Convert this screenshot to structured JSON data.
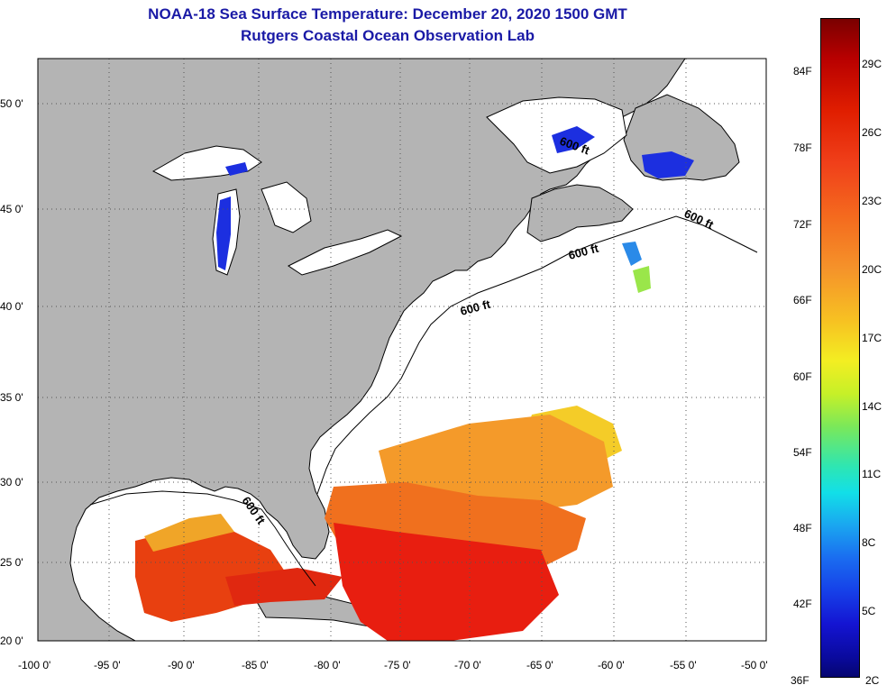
{
  "title_line1": "NOAA-18 Sea Surface Temperature:  December 20, 2020 1500 GMT",
  "title_line2": "Rutgers Coastal Ocean Observation Lab",
  "lat_labels": [
    "50 0'",
    "45 0'",
    "40 0'",
    "35 0'",
    "30 0'",
    "25 0'",
    "20 0'"
  ],
  "lon_labels": [
    "-100 0'",
    "-95 0'",
    "-90 0'",
    "-85 0'",
    "-80 0'",
    "-75 0'",
    "-70 0'",
    "-65 0'",
    "-60 0'",
    "-55 0'",
    "-50 0'"
  ],
  "contour_labels": [
    "600 ft",
    "600 ft",
    "600 ft",
    "600 ft",
    "600 ft"
  ],
  "scale_f": [
    "84F",
    "78F",
    "72F",
    "66F",
    "60F",
    "54F",
    "48F",
    "42F",
    "36F"
  ],
  "scale_c": [
    "29C",
    "26C",
    "23C",
    "20C",
    "17C",
    "14C",
    "11C",
    "8C",
    "5C",
    "2C"
  ],
  "colors": {
    "land": "#b4b4b4",
    "title": "#1a1aa6"
  }
}
